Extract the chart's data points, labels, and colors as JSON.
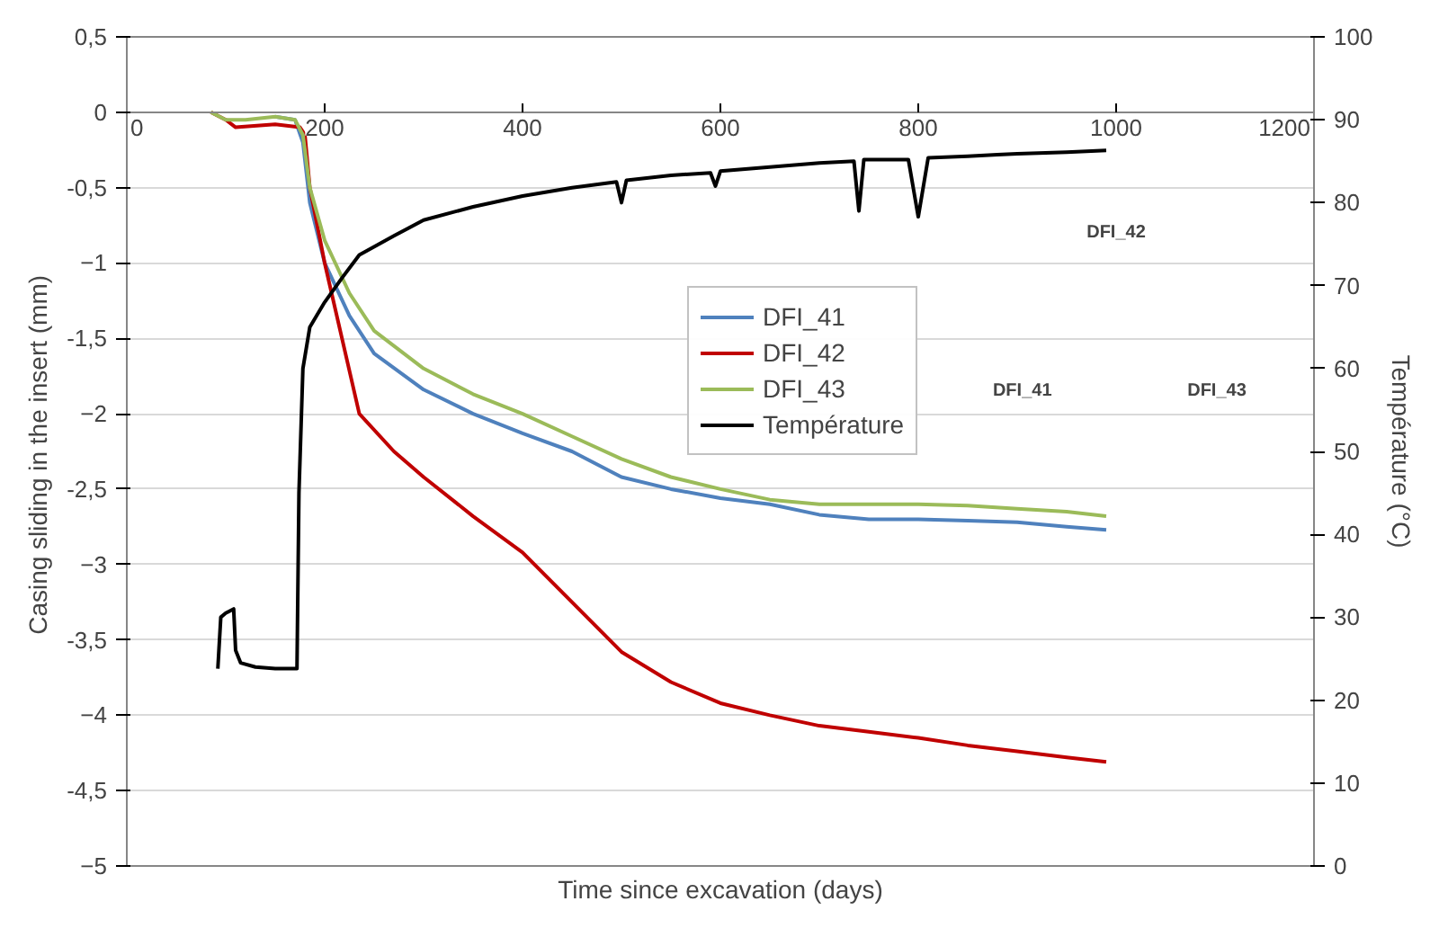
{
  "chart_data": {
    "type": "line",
    "xlabel": "Time since excavation (days)",
    "ylabel": "Casing sliding in the insert  (mm)",
    "y2label": "Température (°C)",
    "xlim": [
      0,
      1200
    ],
    "xticks": [
      0,
      200,
      400,
      600,
      800,
      1000,
      1200
    ],
    "ylim": [
      -5,
      0.5
    ],
    "yticks": [
      {
        "value": 0.5,
        "label": "0,5"
      },
      0,
      {
        "value": -0.5,
        "label": "-0,5"
      },
      -1,
      {
        "value": -1.5,
        "label": "-1,5"
      },
      -2,
      {
        "value": -2.5,
        "label": "-2,5"
      },
      -3,
      {
        "value": -3.5,
        "label": "-3,5"
      },
      -4,
      {
        "value": -4.5,
        "label": "-4,5"
      },
      -5
    ],
    "y2lim": [
      0,
      100
    ],
    "y2ticks": [
      0,
      10,
      20,
      30,
      40,
      50,
      60,
      70,
      80,
      90,
      100
    ],
    "grid": "y",
    "legend": "top center",
    "marker": "none",
    "line_style": "solid",
    "annotations": [
      "DFI_42",
      "DFI_41",
      "DFI_43"
    ],
    "series": [
      {
        "name": "DFI_41",
        "color": "#4f81bd",
        "x": [
          150,
          170,
          178,
          185,
          200,
          225,
          250,
          300,
          350,
          400,
          450,
          500,
          550,
          600,
          650,
          700,
          750,
          800,
          850,
          900,
          950,
          990
        ],
        "values": [
          -0.03,
          -0.05,
          -0.2,
          -0.6,
          -1.0,
          -1.35,
          -1.6,
          -1.84,
          -2.0,
          -2.13,
          -2.25,
          -2.42,
          -2.5,
          -2.56,
          -2.6,
          -2.67,
          -2.7,
          -2.7,
          -2.71,
          -2.72,
          -2.75,
          -2.77
        ]
      },
      {
        "name": "DFI_42",
        "color": "#c00000",
        "x": [
          85,
          100,
          110,
          150,
          175,
          180,
          185,
          200,
          235,
          270,
          300,
          350,
          400,
          450,
          500,
          550,
          600,
          650,
          700,
          750,
          800,
          850,
          900,
          950,
          990
        ],
        "values": [
          0,
          -0.05,
          -0.1,
          -0.08,
          -0.1,
          -0.15,
          -0.5,
          -1.0,
          -2.0,
          -2.25,
          -2.42,
          -2.68,
          -2.92,
          -3.25,
          -3.58,
          -3.78,
          -3.92,
          -4.0,
          -4.07,
          -4.11,
          -4.15,
          -4.2,
          -4.24,
          -4.28,
          -4.31
        ]
      },
      {
        "name": "DFI_43",
        "color": "#9bbb59",
        "x": [
          85,
          100,
          120,
          150,
          170,
          178,
          185,
          200,
          225,
          250,
          300,
          350,
          400,
          450,
          500,
          550,
          600,
          650,
          700,
          750,
          800,
          850,
          900,
          950,
          990
        ],
        "values": [
          0,
          -0.05,
          -0.05,
          -0.03,
          -0.05,
          -0.15,
          -0.5,
          -0.85,
          -1.2,
          -1.45,
          -1.7,
          -1.87,
          -2.0,
          -2.15,
          -2.3,
          -2.42,
          -2.5,
          -2.57,
          -2.6,
          -2.6,
          -2.6,
          -2.61,
          -2.63,
          -2.65,
          -2.68
        ]
      },
      {
        "name": "Température",
        "color": "#000000",
        "axis": "y2",
        "x": [
          92,
          95,
          100,
          108,
          110,
          115,
          130,
          150,
          172,
          174,
          178,
          185,
          200,
          218,
          235,
          270,
          300,
          350,
          400,
          450,
          495,
          500,
          505,
          550,
          590,
          595,
          600,
          650,
          700,
          735,
          740,
          745,
          790,
          800,
          810,
          850,
          880,
          900,
          950,
          990
        ],
        "values": [
          23.8,
          30.0,
          30.5,
          31.0,
          26.0,
          24.5,
          24.0,
          23.8,
          23.8,
          45,
          60,
          65,
          68,
          71,
          73.7,
          76,
          77.9,
          79.5,
          80.8,
          81.8,
          82.5,
          80,
          82.7,
          83.3,
          83.6,
          82,
          83.8,
          84.3,
          84.8,
          85,
          79,
          85.2,
          85.2,
          78.3,
          85.4,
          85.6,
          85.8,
          85.9,
          86.1,
          86.3
        ]
      }
    ]
  }
}
